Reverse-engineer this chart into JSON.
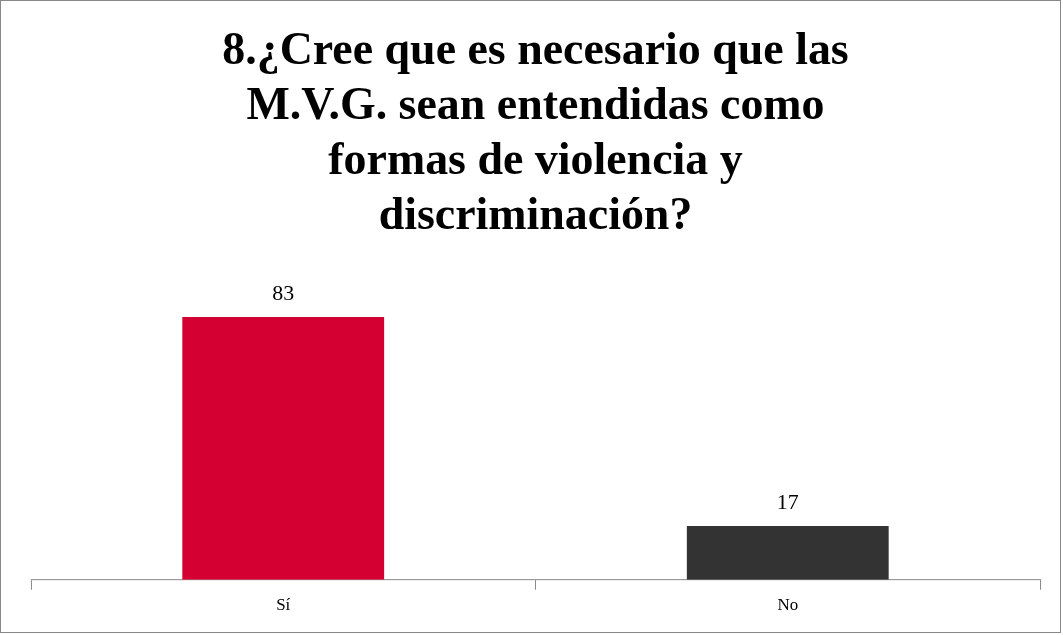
{
  "chart_data": {
    "type": "bar",
    "title": "8.¿Cree que es necesario que las M.V.G. sean entendidas como formas de violencia y discriminación?",
    "categories": [
      "Sí",
      "No"
    ],
    "values": [
      83,
      17
    ],
    "colors": [
      "#d50032",
      "#333333"
    ],
    "data_labels": true,
    "legend": false
  }
}
